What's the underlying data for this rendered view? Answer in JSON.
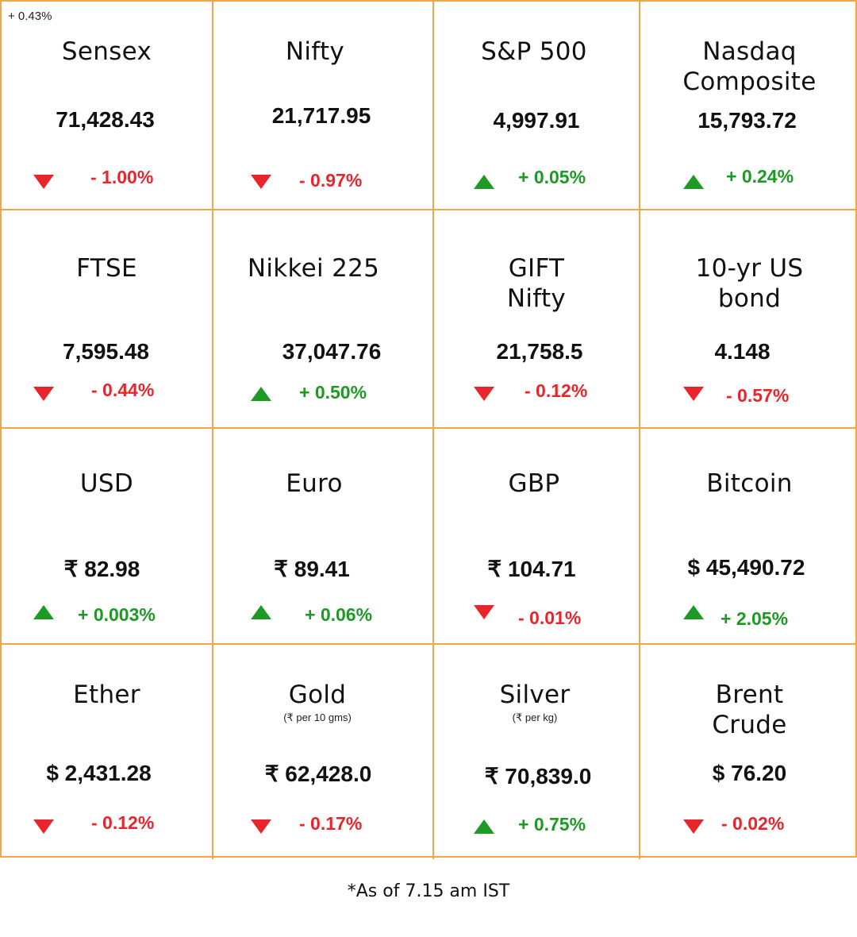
{
  "corner_note": "+ 0.43%",
  "footnote": "*As of 7.15 am IST",
  "tiles": [
    {
      "name": "Sensex",
      "sub": "",
      "value": "71,428.43",
      "change": "- 1.00%",
      "direction": "down"
    },
    {
      "name": "Nifty",
      "sub": "",
      "value": "21,717.95",
      "change": "- 0.97%",
      "direction": "down"
    },
    {
      "name": "S&P 500",
      "sub": "",
      "value": "4,997.91",
      "change": "+ 0.05%",
      "direction": "up"
    },
    {
      "name": "Nasdaq Composite",
      "sub": "",
      "value": "15,793.72",
      "change": "+ 0.24%",
      "direction": "up"
    },
    {
      "name": "FTSE",
      "sub": "",
      "value": "7,595.48",
      "change": "- 0.44%",
      "direction": "down"
    },
    {
      "name": "Nikkei 225",
      "sub": "",
      "value": "37,047.76",
      "change": "+ 0.50%",
      "direction": "up"
    },
    {
      "name": "GIFT Nifty",
      "sub": "",
      "value": "21,758.5",
      "change": "- 0.12%",
      "direction": "down"
    },
    {
      "name": "10-yr US bond",
      "sub": "",
      "value": "4.148",
      "change": "- 0.57%",
      "direction": "down"
    },
    {
      "name": "USD",
      "sub": "",
      "value": "₹ 82.98",
      "change": "+ 0.003%",
      "direction": "up"
    },
    {
      "name": "Euro",
      "sub": "",
      "value": "₹ 89.41",
      "change": "+ 0.06%",
      "direction": "up"
    },
    {
      "name": "GBP",
      "sub": "",
      "value": "₹ 104.71",
      "change": "- 0.01%",
      "direction": "down"
    },
    {
      "name": "Bitcoin",
      "sub": "",
      "value": "$ 45,490.72",
      "change": "+ 2.05%",
      "direction": "up"
    },
    {
      "name": "Ether",
      "sub": "",
      "value": "$ 2,431.28",
      "change": "- 0.12%",
      "direction": "down"
    },
    {
      "name": "Gold",
      "sub": "(₹ per 10 gms)",
      "value": "₹ 62,428.0",
      "change": "- 0.17%",
      "direction": "down"
    },
    {
      "name": "Silver",
      "sub": "(₹ per kg)",
      "value": "₹ 70,839.0",
      "change": "+ 0.75%",
      "direction": "up"
    },
    {
      "name": "Brent Crude",
      "sub": "",
      "value": "$ 76.20",
      "change": "- 0.02%",
      "direction": "down"
    }
  ],
  "colors": {
    "border": "#f2a54a",
    "down": "#e8252b",
    "up": "#1c9a24"
  }
}
